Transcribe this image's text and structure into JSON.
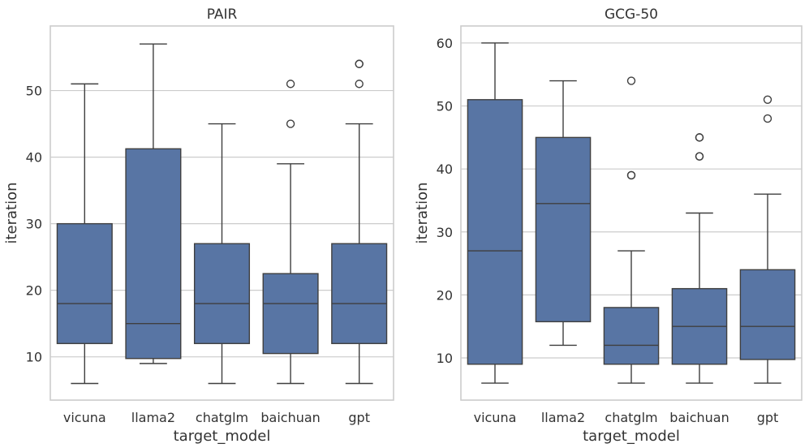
{
  "chart_data": [
    {
      "type": "box",
      "title": "PAIR",
      "xlabel": "target_model",
      "ylabel": "iteration",
      "ylim": [
        3.5,
        59.7
      ],
      "yticks": [
        10,
        20,
        30,
        40,
        50
      ],
      "categories": [
        "vicuna",
        "llama2",
        "chatglm",
        "baichuan",
        "gpt"
      ],
      "grid": "horizontal",
      "color": "#5875a4",
      "boxes": [
        {
          "category": "vicuna",
          "whisker_low": 6,
          "q1": 12,
          "median": 18,
          "q3": 30,
          "whisker_high": 51,
          "outliers": []
        },
        {
          "category": "llama2",
          "whisker_low": 9,
          "q1": 9.75,
          "median": 15,
          "q3": 41.25,
          "whisker_high": 57,
          "outliers": []
        },
        {
          "category": "chatglm",
          "whisker_low": 6,
          "q1": 12,
          "median": 18,
          "q3": 27,
          "whisker_high": 45,
          "outliers": []
        },
        {
          "category": "baichuan",
          "whisker_low": 6,
          "q1": 10.5,
          "median": 18,
          "q3": 22.5,
          "whisker_high": 39,
          "outliers": [
            45,
            51
          ]
        },
        {
          "category": "gpt",
          "whisker_low": 6,
          "q1": 12,
          "median": 18,
          "q3": 27,
          "whisker_high": 45,
          "outliers": [
            51,
            54,
            54
          ]
        }
      ]
    },
    {
      "type": "box",
      "title": "GCG-50",
      "xlabel": "target_model",
      "ylabel": "iteration",
      "ylim": [
        3.3,
        62.7
      ],
      "yticks": [
        10,
        20,
        30,
        40,
        50,
        60
      ],
      "categories": [
        "vicuna",
        "llama2",
        "chatglm",
        "baichuan",
        "gpt"
      ],
      "grid": "horizontal",
      "color": "#5875a4",
      "boxes": [
        {
          "category": "vicuna",
          "whisker_low": 6,
          "q1": 9,
          "median": 27,
          "q3": 51,
          "whisker_high": 60,
          "outliers": []
        },
        {
          "category": "llama2",
          "whisker_low": 12,
          "q1": 15.75,
          "median": 34.5,
          "q3": 45,
          "whisker_high": 54,
          "outliers": []
        },
        {
          "category": "chatglm",
          "whisker_low": 6,
          "q1": 9,
          "median": 12,
          "q3": 18,
          "whisker_high": 27,
          "outliers": [
            39,
            39,
            54
          ]
        },
        {
          "category": "baichuan",
          "whisker_low": 6,
          "q1": 9,
          "median": 15,
          "q3": 21,
          "whisker_high": 33,
          "outliers": [
            42,
            42,
            45,
            45
          ]
        },
        {
          "category": "gpt",
          "whisker_low": 6,
          "q1": 9.75,
          "median": 15,
          "q3": 24,
          "whisker_high": 36,
          "outliers": [
            48,
            51
          ]
        }
      ]
    }
  ]
}
